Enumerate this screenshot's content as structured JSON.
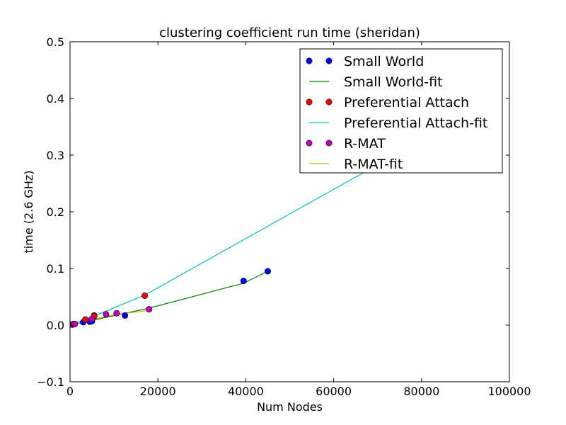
{
  "chart_data": {
    "type": "scatter",
    "title": "clustering coefficient run time (sheridan)",
    "xlabel": "Num Nodes",
    "ylabel": "time (2.6 GHz)",
    "xlim": [
      0,
      100000
    ],
    "ylim": [
      -0.1,
      0.5
    ],
    "x_ticks": [
      0,
      20000,
      40000,
      60000,
      80000,
      100000
    ],
    "y_ticks": [
      -0.1,
      0.0,
      0.1,
      0.2,
      0.3,
      0.4,
      0.5
    ],
    "x_tick_labels": [
      "0",
      "20000",
      "40000",
      "60000",
      "80000",
      "100000"
    ],
    "y_tick_labels": [
      "−0.1",
      "0.0",
      "0.1",
      "0.2",
      "0.3",
      "0.4",
      "0.5"
    ],
    "grid": false,
    "legend_position": "top-right",
    "series": [
      {
        "name": "Small World",
        "kind": "points",
        "color": "#0000ff",
        "x": [
          500,
          1000,
          3000,
          4500,
          5000,
          5500,
          12500,
          39500,
          45000
        ],
        "y": [
          0.001,
          0.002,
          0.005,
          0.006,
          0.007,
          0.017,
          0.017,
          0.078,
          0.095
        ]
      },
      {
        "name": "Small World-fit",
        "kind": "line",
        "color": "#008000",
        "x": [
          0,
          18000,
          39500,
          45000
        ],
        "y": [
          0.0,
          0.03,
          0.074,
          0.095
        ]
      },
      {
        "name": "Preferential Attach",
        "kind": "points",
        "color": "#ff0000",
        "x": [
          500,
          1000,
          3500,
          5500,
          17000
        ],
        "y": [
          0.001,
          0.002,
          0.01,
          0.016,
          0.052
        ]
      },
      {
        "name": "Preferential Attach-fit",
        "kind": "line",
        "color": "#00bfbf",
        "x": [
          0,
          5500,
          17000,
          67000
        ],
        "y": [
          0.0,
          0.016,
          0.053,
          0.27
        ]
      },
      {
        "name": "R-MAT",
        "kind": "points",
        "color": "#bf00bf",
        "x": [
          800,
          1100,
          5000,
          8200,
          10600,
          18000
        ],
        "y": [
          0.002,
          0.002,
          0.011,
          0.019,
          0.021,
          0.028
        ]
      },
      {
        "name": "R-MAT-fit",
        "kind": "line",
        "color": "#bfbf00",
        "x": [
          0,
          5000,
          10600,
          18000
        ],
        "y": [
          0.0,
          0.01,
          0.019,
          0.026
        ]
      }
    ]
  }
}
